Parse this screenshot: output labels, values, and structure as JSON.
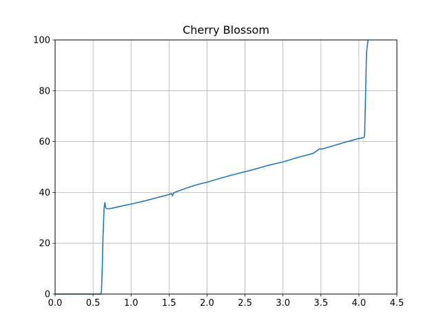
{
  "chart_data": {
    "type": "line",
    "title": "Cherry Blossom",
    "xlabel": "",
    "ylabel": "",
    "xlim": [
      0.0,
      4.5
    ],
    "ylim": [
      0,
      100
    ],
    "xticks": [
      "0.0",
      "0.5",
      "1.0",
      "1.5",
      "2.0",
      "2.5",
      "3.0",
      "3.5",
      "4.0",
      "4.5"
    ],
    "yticks": [
      "0",
      "20",
      "40",
      "60",
      "80",
      "100"
    ],
    "grid": true,
    "legend": "none",
    "series": [
      {
        "color": "#1f77b4",
        "x": [
          0.0,
          0.3,
          0.6,
          0.61,
          0.62,
          0.63,
          0.645,
          0.655,
          0.665,
          0.68,
          0.7,
          0.75,
          0.8,
          0.9,
          1.0,
          1.1,
          1.2,
          1.3,
          1.4,
          1.5,
          1.53,
          1.545,
          1.56,
          1.6,
          1.7,
          1.8,
          1.9,
          2.0,
          2.2,
          2.4,
          2.6,
          2.8,
          3.0,
          3.2,
          3.4,
          3.45,
          3.48,
          3.5,
          3.6,
          3.8,
          4.0,
          4.05,
          4.07,
          4.075,
          4.085,
          4.1,
          4.12
        ],
        "y": [
          0,
          0,
          0,
          1,
          10,
          22,
          34,
          36,
          34,
          33.6,
          33.5,
          33.8,
          34.1,
          34.8,
          35.4,
          36.1,
          36.8,
          37.6,
          38.4,
          39.2,
          39.6,
          38.7,
          39.8,
          40.3,
          41.4,
          42.4,
          43.3,
          44.0,
          45.8,
          47.4,
          48.9,
          50.6,
          52.0,
          53.8,
          55.4,
          56.4,
          57.2,
          57.0,
          57.8,
          59.6,
          61.2,
          61.5,
          61.7,
          63,
          75,
          95,
          100
        ]
      }
    ]
  }
}
